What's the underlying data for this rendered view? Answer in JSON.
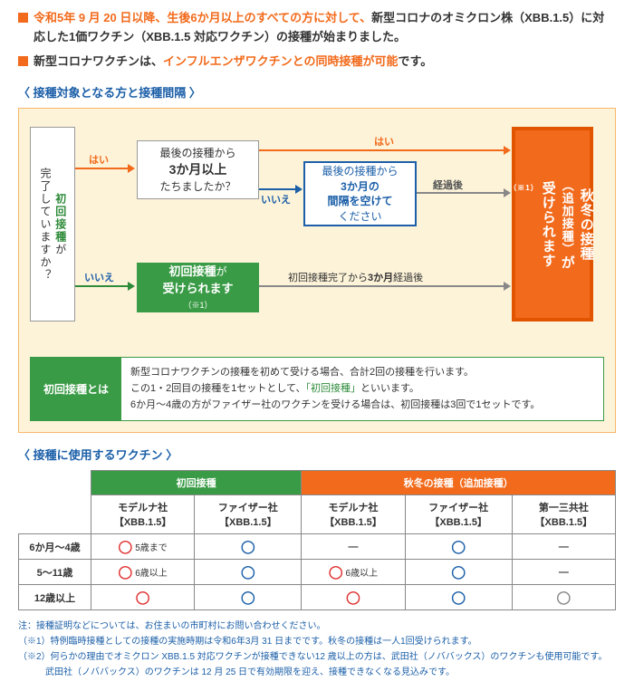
{
  "bullets": [
    {
      "pre": "令和5年 9 月 20 日以降、生後6か月以上のすべての方に対して、",
      "post1": "新型コロナのオミクロン株（XBB.1.5）に対応した1価ワクチン（XBB.1.5 対応ワクチン）の接種が始まりました。"
    },
    {
      "pre2": "新型コロナワクチンは、",
      "hl": "インフルエンザワクチンとの同時接種が可能",
      "post2": "です。"
    }
  ],
  "section1_title": "〈 接種対象となる方と接種間隔 〉",
  "flow": {
    "q1_a": "初回接種",
    "q1_b": "が",
    "q1_c": "完了していますか？",
    "q2_a": "最後の接種から",
    "q2_b": "3か月以上",
    "q2_c": "たちましたか？",
    "wait_a": "最後の接種から",
    "wait_b": "3か月の",
    "wait_c": "間隔を空けて",
    "wait_d": "ください",
    "initial_a": "初回接種",
    "initial_b": "が",
    "initial_c": "受けられます",
    "initial_note": "（※1）",
    "result_a": "秋冬の接種",
    "result_b": "（追加接種）",
    "result_c": "が",
    "result_d": "受けられます",
    "result_note": "（※1）",
    "yes": "はい",
    "no": "いいえ",
    "after": "経過後",
    "path_text_a": "初回接種完了から",
    "path_text_b": "3か月",
    "path_text_c": "経過後"
  },
  "note": {
    "label": "初回接種とは",
    "line1": "新型コロナワクチンの接種を初めて受ける場合、合計2回の接種を行います。",
    "line2a": "この1・2回目の接種を1セットとして、",
    "line2b": "「初回接種」",
    "line2c": "といいます。",
    "line3": "6か月～4歳の方がファイザー社のワクチンを受ける場合は、初回接種は3回で1セットです。"
  },
  "section2_title": "〈 接種に使用するワクチン 〉",
  "table": {
    "group1": "初回接種",
    "group2": "秋冬の接種（追加接種）",
    "cols": [
      "モデルナ社\n【XBB.1.5】",
      "ファイザー社\n【XBB.1.5】",
      "モデルナ社\n【XBB.1.5】",
      "ファイザー社\n【XBB.1.5】",
      "第一三共社\n【XBB.1.5】"
    ],
    "rows": [
      {
        "h": "6か月～4歳",
        "cells": [
          {
            "t": "circ-red",
            "note": "5歳まで"
          },
          {
            "t": "circ-blue"
          },
          {
            "t": "dash"
          },
          {
            "t": "circ-blue"
          },
          {
            "t": "dash"
          }
        ]
      },
      {
        "h": "5～11歳",
        "cells": [
          {
            "t": "circ-red",
            "note": "6歳以上"
          },
          {
            "t": "circ-blue"
          },
          {
            "t": "circ-red",
            "note": "6歳以上"
          },
          {
            "t": "circ-blue"
          },
          {
            "t": "dash"
          }
        ]
      },
      {
        "h": "12歳以上",
        "cells": [
          {
            "t": "circ-red"
          },
          {
            "t": "circ-blue"
          },
          {
            "t": "circ-red"
          },
          {
            "t": "circ-blue"
          },
          {
            "t": "circ-gray"
          }
        ]
      }
    ]
  },
  "footnotes": [
    "注：接種証明などについては、お住まいの市町村にお問い合わせください。",
    "（※1）特例臨時接種としての接種の実施時期は令和6年3月 31 日までです。秋冬の接種は一人1回受けられます。",
    "（※2）何らかの理由でオミクロン XBB.1.5 対応ワクチンが接種できない12 歳以上の方は、武田社（ノババックス）のワクチンも使用可能です。",
    "　　　武田社（ノババックス）のワクチンは 12 月 25 日で有効期限を迎え、接種できなくなる見込みです。"
  ]
}
